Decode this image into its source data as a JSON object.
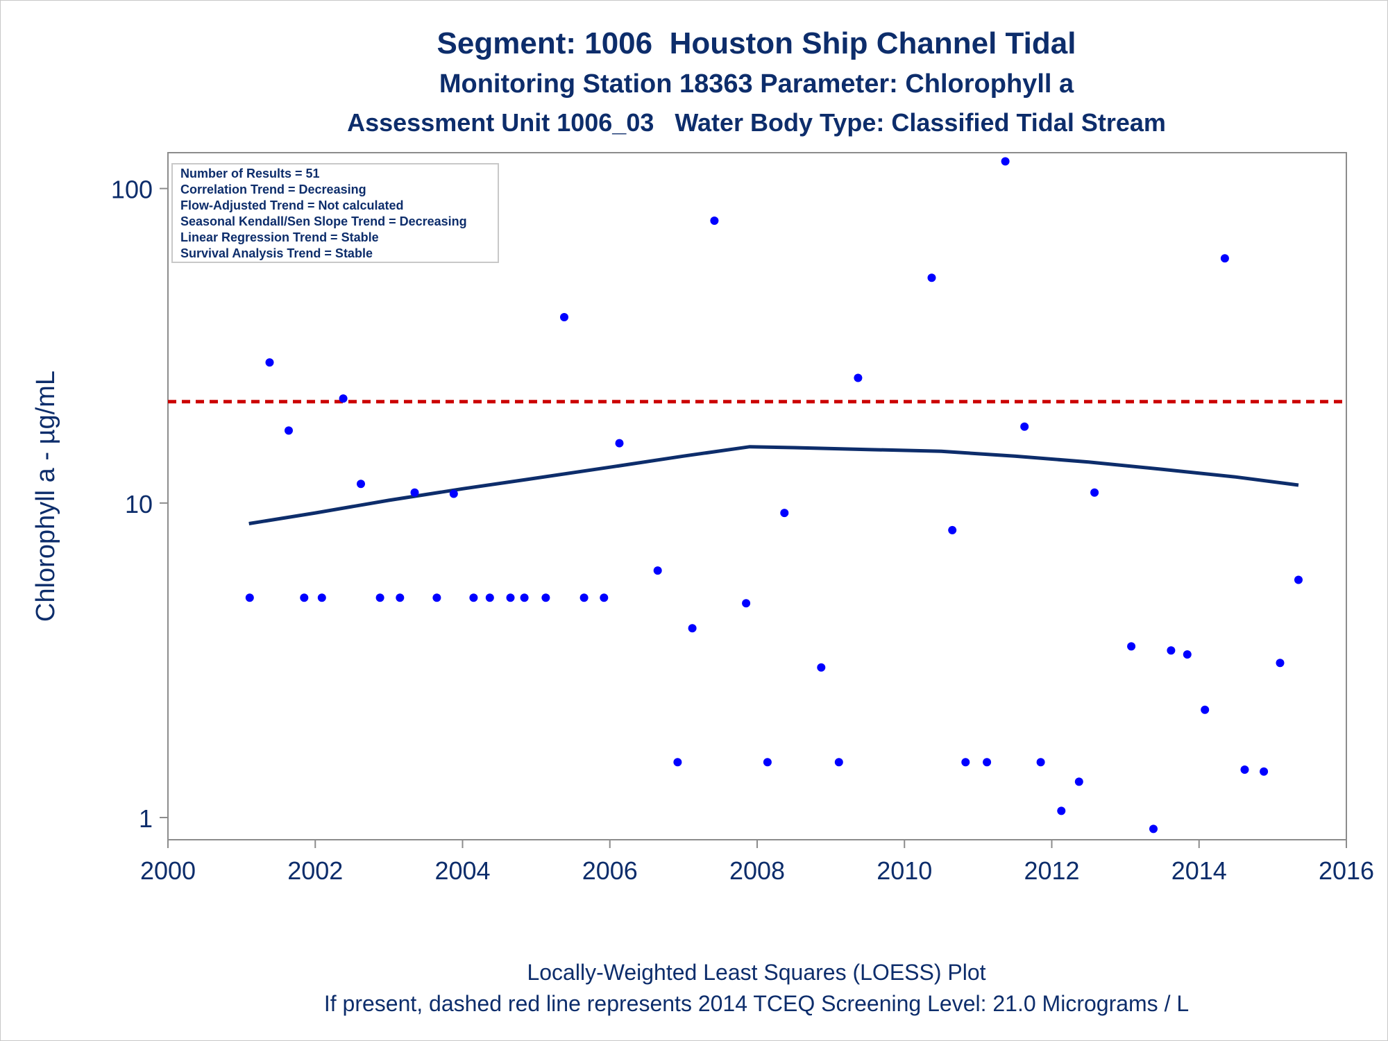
{
  "chart_data": {
    "type": "scatter",
    "title": "Segment: 1006  Houston Ship Channel Tidal",
    "subtitle": "Monitoring Station 18363 Parameter: Chlorophyll a",
    "subtitle2": "Assessment Unit 1006_03   Water Body Type: Classified Tidal Stream",
    "xlabel": "",
    "ylabel": "Chlorophyll a -  µg/mL",
    "xlim": [
      2000,
      2016
    ],
    "ylim": [
      0.85,
      130
    ],
    "yscale": "log",
    "x_ticks": [
      "2000",
      "2002",
      "2004",
      "2006",
      "2008",
      "2010",
      "2012",
      "2014",
      "2016"
    ],
    "y_ticks": [
      "1",
      "10",
      "100"
    ],
    "grid": false,
    "stats_box": {
      "placement": "top-left",
      "lines": [
        "Number of Results = 51",
        "Correlation Trend = Decreasing",
        "Flow-Adjusted Trend = Not calculated",
        "Seasonal Kendall/Sen Slope Trend = Decreasing",
        "Linear Regression Trend = Stable",
        "Survival Analysis Trend = Stable"
      ]
    },
    "footnote1": "Locally-Weighted Least Squares (LOESS) Plot",
    "footnote2": "If present, dashed red line represents 2014 TCEQ Screening Level: 21.0 Micrograms / L",
    "screening_level": 21.0,
    "colors": {
      "points": "#0000ff",
      "loess": "#0d2d6b",
      "screening": "#cc0000",
      "text": "#0d2d6b"
    },
    "points": [
      [
        2001.11,
        5
      ],
      [
        2001.38,
        28
      ],
      [
        2001.64,
        17
      ],
      [
        2001.85,
        5
      ],
      [
        2002.09,
        5
      ],
      [
        2002.38,
        21.5
      ],
      [
        2002.62,
        11.5
      ],
      [
        2002.88,
        5
      ],
      [
        2003.15,
        5
      ],
      [
        2003.35,
        10.8
      ],
      [
        2003.65,
        5
      ],
      [
        2003.88,
        10.7
      ],
      [
        2004.15,
        5
      ],
      [
        2004.37,
        5
      ],
      [
        2004.65,
        5
      ],
      [
        2004.84,
        5
      ],
      [
        2005.13,
        5
      ],
      [
        2005.38,
        39
      ],
      [
        2005.65,
        5
      ],
      [
        2005.92,
        5
      ],
      [
        2006.13,
        15.5
      ],
      [
        2006.65,
        6.1
      ],
      [
        2006.92,
        1.5
      ],
      [
        2007.12,
        4
      ],
      [
        2007.42,
        79
      ],
      [
        2007.85,
        4.8
      ],
      [
        2008.14,
        1.5
      ],
      [
        2008.37,
        9.3
      ],
      [
        2008.87,
        3
      ],
      [
        2009.11,
        1.5
      ],
      [
        2009.37,
        25
      ],
      [
        2010.37,
        52
      ],
      [
        2010.65,
        8.2
      ],
      [
        2010.83,
        1.5
      ],
      [
        2011.12,
        1.5
      ],
      [
        2011.37,
        122
      ],
      [
        2011.63,
        17.5
      ],
      [
        2011.85,
        1.5
      ],
      [
        2012.13,
        1.05
      ],
      [
        2012.37,
        1.3
      ],
      [
        2012.58,
        10.8
      ],
      [
        2013.08,
        3.5
      ],
      [
        2013.38,
        0.92
      ],
      [
        2013.62,
        3.4
      ],
      [
        2013.84,
        3.3
      ],
      [
        2014.08,
        2.2
      ],
      [
        2014.35,
        60
      ],
      [
        2014.62,
        1.42
      ],
      [
        2014.88,
        1.4
      ],
      [
        2015.1,
        3.1
      ],
      [
        2015.35,
        5.7
      ]
    ],
    "loess": [
      [
        2001.1,
        8.6
      ],
      [
        2002.0,
        9.3
      ],
      [
        2003.0,
        10.2
      ],
      [
        2004.0,
        11.1
      ],
      [
        2005.0,
        12.0
      ],
      [
        2006.0,
        13.0
      ],
      [
        2007.0,
        14.1
      ],
      [
        2007.9,
        15.1
      ],
      [
        2008.5,
        15.0
      ],
      [
        2009.5,
        14.8
      ],
      [
        2010.5,
        14.6
      ],
      [
        2011.5,
        14.1
      ],
      [
        2012.5,
        13.5
      ],
      [
        2013.5,
        12.8
      ],
      [
        2014.5,
        12.1
      ],
      [
        2015.35,
        11.4
      ]
    ]
  }
}
